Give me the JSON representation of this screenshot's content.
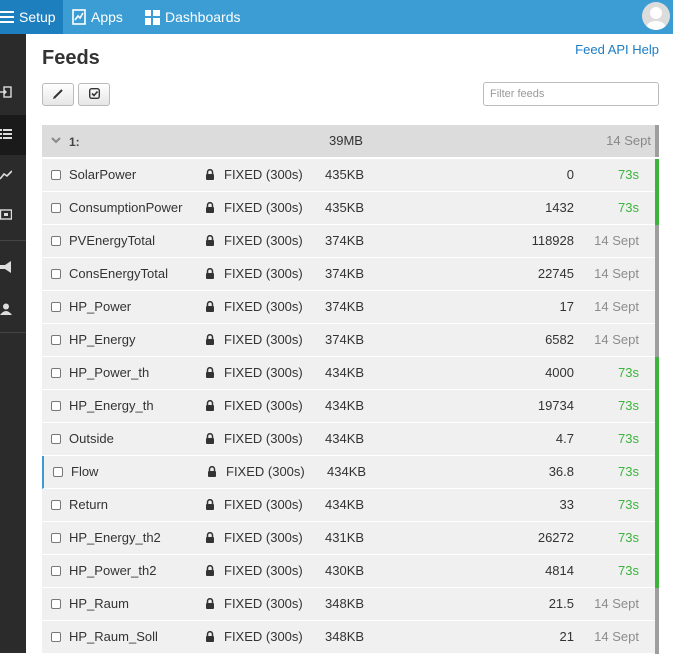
{
  "nav": {
    "setup": "Setup",
    "apps": "Apps",
    "dashboards": "Dashboards"
  },
  "page": {
    "title": "Feeds",
    "help_link": "Feed API Help",
    "filter_placeholder": "Filter feeds"
  },
  "group": {
    "name": "1:",
    "size": "39MB",
    "updated": "14 Sept"
  },
  "colors": {
    "accent": "#3b9dd4",
    "live": "#3cb43c",
    "stale": "#9e9e9e"
  },
  "feeds": [
    {
      "name": "SolarPower",
      "engine": "FIXED (300s)",
      "size": "435KB",
      "value": "0",
      "time": "73s",
      "status": "live"
    },
    {
      "name": "ConsumptionPower",
      "engine": "FIXED (300s)",
      "size": "435KB",
      "value": "1432",
      "time": "73s",
      "status": "live"
    },
    {
      "name": "PVEnergyTotal",
      "engine": "FIXED (300s)",
      "size": "374KB",
      "value": "118928",
      "time": "14 Sept",
      "status": "stale"
    },
    {
      "name": "ConsEnergyTotal",
      "engine": "FIXED (300s)",
      "size": "374KB",
      "value": "22745",
      "time": "14 Sept",
      "status": "stale"
    },
    {
      "name": "HP_Power",
      "engine": "FIXED (300s)",
      "size": "374KB",
      "value": "17",
      "time": "14 Sept",
      "status": "stale"
    },
    {
      "name": "HP_Energy",
      "engine": "FIXED (300s)",
      "size": "374KB",
      "value": "6582",
      "time": "14 Sept",
      "status": "stale"
    },
    {
      "name": "HP_Power_th",
      "engine": "FIXED (300s)",
      "size": "434KB",
      "value": "4000",
      "time": "73s",
      "status": "live"
    },
    {
      "name": "HP_Energy_th",
      "engine": "FIXED (300s)",
      "size": "434KB",
      "value": "19734",
      "time": "73s",
      "status": "live"
    },
    {
      "name": "Outside",
      "engine": "FIXED (300s)",
      "size": "434KB",
      "value": "4.7",
      "time": "73s",
      "status": "live"
    },
    {
      "name": "Flow",
      "engine": "FIXED (300s)",
      "size": "434KB",
      "value": "36.8",
      "time": "73s",
      "status": "live",
      "selected": true
    },
    {
      "name": "Return",
      "engine": "FIXED (300s)",
      "size": "434KB",
      "value": "33",
      "time": "73s",
      "status": "live"
    },
    {
      "name": "HP_Energy_th2",
      "engine": "FIXED (300s)",
      "size": "431KB",
      "value": "26272",
      "time": "73s",
      "status": "live"
    },
    {
      "name": "HP_Power_th2",
      "engine": "FIXED (300s)",
      "size": "430KB",
      "value": "4814",
      "time": "73s",
      "status": "live"
    },
    {
      "name": "HP_Raum",
      "engine": "FIXED (300s)",
      "size": "348KB",
      "value": "21.5",
      "time": "14 Sept",
      "status": "stale"
    },
    {
      "name": "HP_Raum_Soll",
      "engine": "FIXED (300s)",
      "size": "348KB",
      "value": "21",
      "time": "14 Sept",
      "status": "stale"
    }
  ]
}
